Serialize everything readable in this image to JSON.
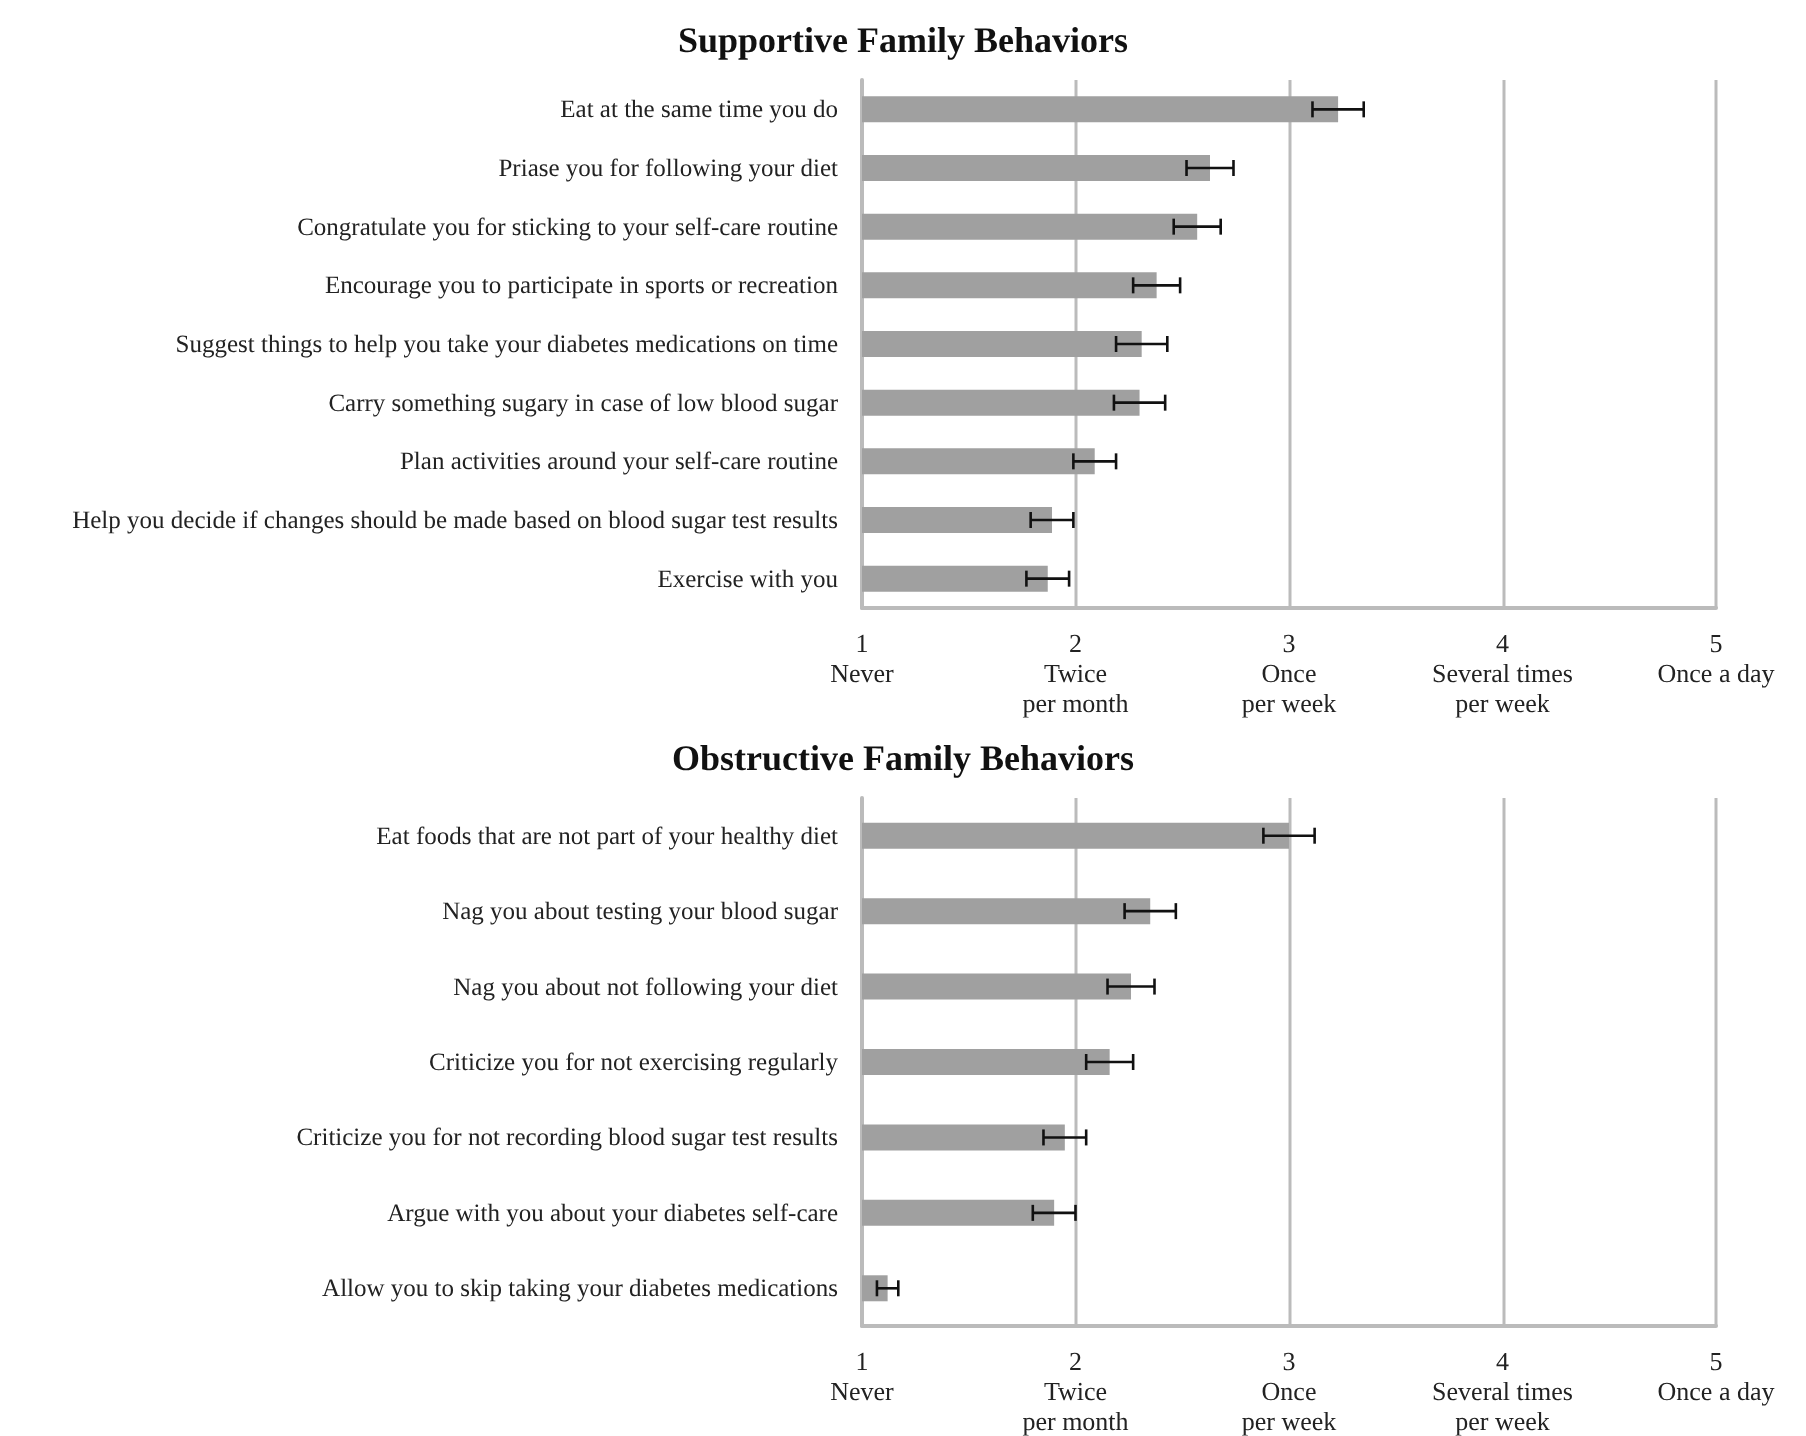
{
  "chart_data": [
    {
      "type": "bar",
      "orientation": "horizontal",
      "title": "Supportive Family Behaviors",
      "categories": [
        "Eat at the same time you do",
        "Priase you for following your diet",
        "Congratulate you for sticking to your self-care routine",
        "Encourage you to participate in sports or recreation",
        "Suggest things to help you take your diabetes medications on time",
        "Carry something sugary in case of low blood sugar",
        "Plan activities around your self-care routine",
        "Help you decide if changes should be made based on blood sugar test results",
        "Exercise with you"
      ],
      "values": [
        3.23,
        2.63,
        2.57,
        2.38,
        2.31,
        2.3,
        2.09,
        1.89,
        1.87
      ],
      "errors": [
        0.12,
        0.11,
        0.11,
        0.11,
        0.12,
        0.12,
        0.1,
        0.1,
        0.1
      ],
      "color": "#a0a0a0",
      "xlim": [
        1,
        5
      ],
      "xticks": [
        {
          "value": 1,
          "label": "1\nNever"
        },
        {
          "value": 2,
          "label": "2\nTwice\nper month"
        },
        {
          "value": 3,
          "label": "3\nOnce\nper week"
        },
        {
          "value": 4,
          "label": "4\nSeveral times\nper week"
        },
        {
          "value": 5,
          "label": "5\nOnce a day"
        }
      ],
      "grid": "x"
    },
    {
      "type": "bar",
      "orientation": "horizontal",
      "title": "Obstructive Family Behaviors",
      "categories": [
        "Eat foods that are not part of your healthy diet",
        "Nag you about testing your blood sugar",
        "Nag you about not following your diet",
        "Criticize you for not exercising regularly",
        "Criticize you for not recording blood sugar test results",
        "Argue with you about your diabetes self-care",
        "Allow you to skip taking your diabetes medications"
      ],
      "values": [
        3.0,
        2.35,
        2.26,
        2.16,
        1.95,
        1.9,
        1.12
      ],
      "errors": [
        0.12,
        0.12,
        0.11,
        0.11,
        0.1,
        0.1,
        0.05
      ],
      "color": "#a0a0a0",
      "xlim": [
        1,
        5
      ],
      "xticks": [
        {
          "value": 1,
          "label": "1\nNever"
        },
        {
          "value": 2,
          "label": "2\nTwice\nper month"
        },
        {
          "value": 3,
          "label": "3\nOnce\nper week"
        },
        {
          "value": 4,
          "label": "4\nSeveral times\nper week"
        },
        {
          "value": 5,
          "label": "5\nOnce a day"
        }
      ],
      "grid": "x"
    }
  ]
}
